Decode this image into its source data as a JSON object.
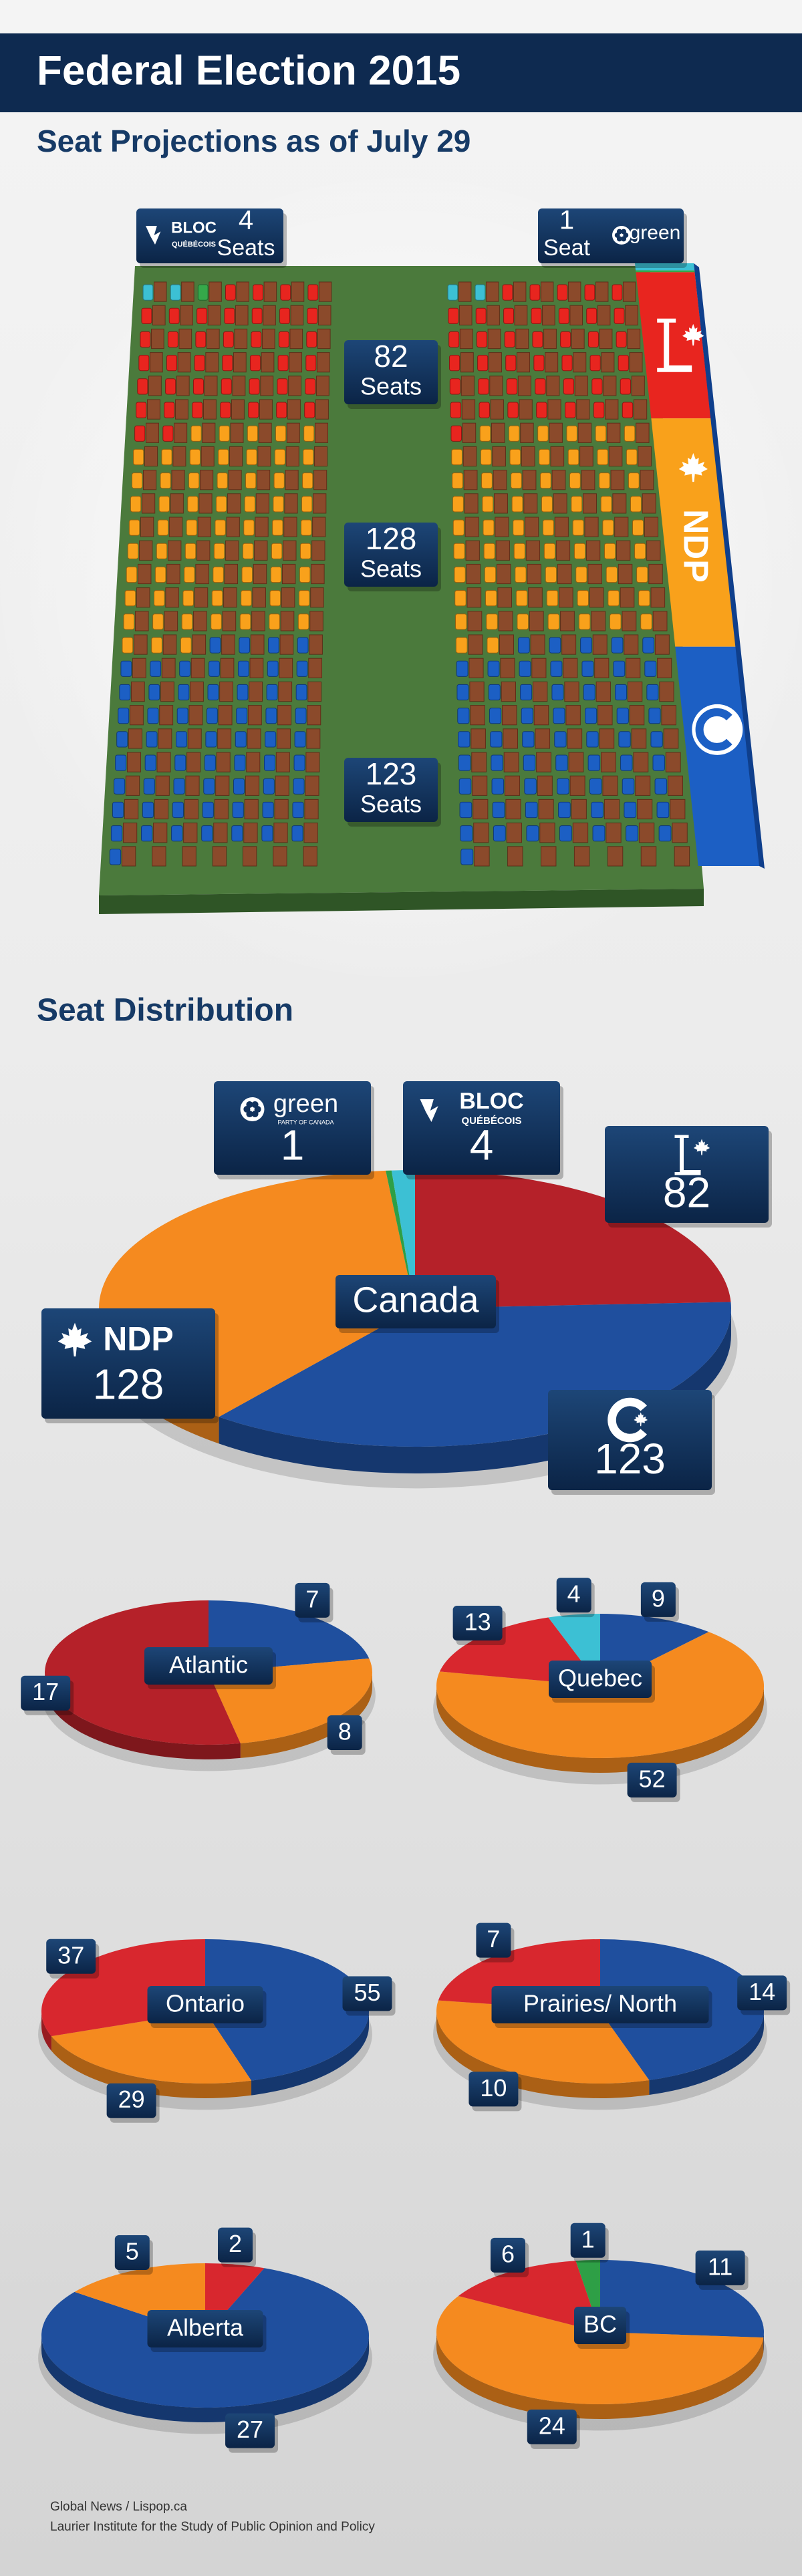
{
  "header": {
    "title": "Federal Election 2015",
    "subtitle": "Seat Projections as of July 29"
  },
  "logos": {
    "bloc": [
      "BLOC",
      "QUÉBÉCOIS"
    ],
    "green": "green",
    "green_sub": "PARTY OF CANADA",
    "ndp": "NDP"
  },
  "chart_data": [
    {
      "type": "seats",
      "values": [
        4,
        1,
        82,
        128,
        123
      ],
      "units": [
        "Seats",
        "Seat",
        "Seats",
        "Seats",
        "Seats"
      ],
      "colors": [
        "#3cc0d4",
        "#35a84a",
        "#e8251f",
        "#f9a11b",
        "#1c5fc4"
      ]
    },
    {
      "type": "pie",
      "title": "Seat Distribution",
      "label": "Canada",
      "values": [
        82,
        123,
        128,
        1,
        4
      ],
      "colors": [
        "#b52129",
        "#1f4f9e",
        "#f58a1f",
        "#2e9f46",
        "#3cc0d4"
      ]
    },
    {
      "type": "pie",
      "label": "Atlantic",
      "values": [
        7,
        8,
        17
      ],
      "colors": [
        "#1f4f9e",
        "#f58a1f",
        "#b52129"
      ]
    },
    {
      "type": "pie",
      "label": "Quebec",
      "values": [
        9,
        52,
        13,
        4
      ],
      "colors": [
        "#1f4f9e",
        "#f58a1f",
        "#d8272e",
        "#3cc0d4"
      ]
    },
    {
      "type": "pie",
      "label": "Ontario",
      "values": [
        55,
        29,
        37
      ],
      "colors": [
        "#1f4f9e",
        "#f58a1f",
        "#d8272e"
      ]
    },
    {
      "type": "pie",
      "label": "Prairies/ North",
      "values": [
        14,
        10,
        7
      ],
      "colors": [
        "#1f4f9e",
        "#f58a1f",
        "#d8272e"
      ]
    },
    {
      "type": "pie",
      "label": "Alberta",
      "values": [
        2,
        27,
        5
      ],
      "colors": [
        "#d8272e",
        "#1f4f9e",
        "#f58a1f"
      ]
    },
    {
      "type": "pie",
      "label": "BC",
      "values": [
        11,
        24,
        6,
        1
      ],
      "colors": [
        "#1f4f9e",
        "#f58a1f",
        "#d8272e",
        "#2e9f46"
      ]
    }
  ],
  "footer": [
    "Global News / Lispop.ca",
    "Laurier Institute for the Study of Public Opinion and Policy"
  ]
}
